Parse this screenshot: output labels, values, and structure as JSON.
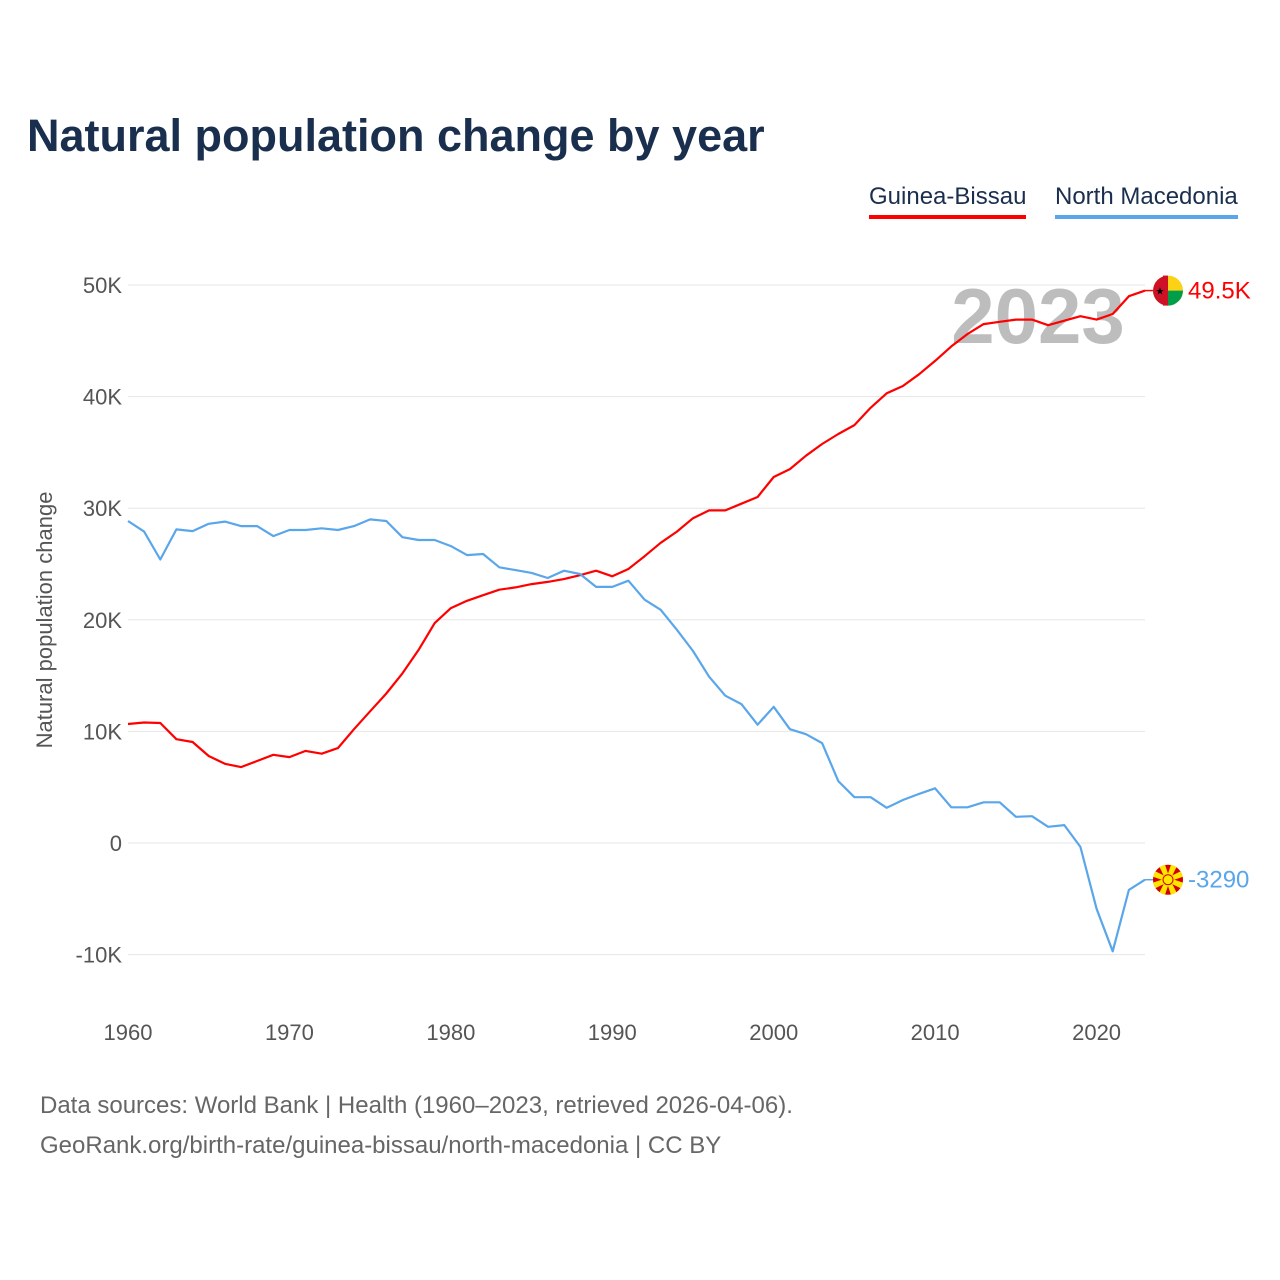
{
  "title": "Natural population change by year",
  "footer": {
    "line1": "Data sources: World Bank | Health (1960–2023, retrieved 2026-04-06).",
    "line2": "GeoRank.org/birth-rate/guinea-bissau/north-macedonia | CC BY"
  },
  "chart_data": {
    "type": "line",
    "title": "Natural population change by year",
    "xlabel": "",
    "ylabel": "Natural population change",
    "year_label": "2023",
    "xlim": [
      1960,
      2023
    ],
    "ylim": [
      -10000,
      50000
    ],
    "x_ticks": [
      "1960",
      "1970",
      "1980",
      "1990",
      "2000",
      "2010",
      "2020"
    ],
    "y_ticks": [
      {
        "v": -10000,
        "label": "-10K"
      },
      {
        "v": 0,
        "label": "0"
      },
      {
        "v": 10000,
        "label": "10K"
      },
      {
        "v": 20000,
        "label": "20K"
      },
      {
        "v": 30000,
        "label": "30K"
      },
      {
        "v": 40000,
        "label": "40K"
      },
      {
        "v": 50000,
        "label": "50K"
      }
    ],
    "grid": true,
    "legend_position": "top-right",
    "x": [
      1960,
      1961,
      1962,
      1963,
      1964,
      1965,
      1966,
      1967,
      1968,
      1969,
      1970,
      1971,
      1972,
      1973,
      1974,
      1975,
      1976,
      1977,
      1978,
      1979,
      1980,
      1981,
      1982,
      1983,
      1984,
      1985,
      1986,
      1987,
      1988,
      1989,
      1990,
      1991,
      1992,
      1993,
      1994,
      1995,
      1996,
      1997,
      1998,
      1999,
      2000,
      2001,
      2002,
      2003,
      2004,
      2005,
      2006,
      2007,
      2008,
      2009,
      2010,
      2011,
      2012,
      2013,
      2014,
      2015,
      2016,
      2017,
      2018,
      2019,
      2020,
      2021,
      2022,
      2023
    ],
    "series": [
      {
        "name": "Guinea-Bissau",
        "color": "#ff0000",
        "end_label": "49.5K",
        "flag": "guinea-bissau-flag",
        "values": [
          10660,
          10800,
          10750,
          9300,
          9050,
          7800,
          7100,
          6800,
          7350,
          7900,
          7700,
          8250,
          8000,
          8500,
          10200,
          11800,
          13400,
          15200,
          17300,
          19700,
          21050,
          21700,
          22200,
          22700,
          22900,
          23200,
          23400,
          23650,
          24000,
          24400,
          23900,
          24550,
          25700,
          26900,
          27900,
          29100,
          29800,
          29800,
          30400,
          31000,
          32800,
          33500,
          34700,
          35750,
          36650,
          37450,
          39000,
          40300,
          40950,
          42000,
          43200,
          44500,
          45600,
          46500,
          46700,
          46900,
          46900,
          46400,
          46800,
          47200,
          46900,
          47400,
          49000,
          49500
        ]
      },
      {
        "name": "North Macedonia",
        "color": "#5aa6eb",
        "end_label": "-3290",
        "flag": "north-macedonia-flag",
        "values": [
          28850,
          27900,
          25400,
          28100,
          27950,
          28600,
          28800,
          28400,
          28400,
          27500,
          28050,
          28050,
          28200,
          28050,
          28400,
          29000,
          28850,
          27400,
          27150,
          27150,
          26600,
          25800,
          25900,
          24700,
          24450,
          24200,
          23750,
          24400,
          24100,
          22950,
          22950,
          23500,
          21800,
          20900,
          19100,
          17200,
          14900,
          13200,
          12450,
          10600,
          12200,
          10200,
          9750,
          8950,
          5550,
          4100,
          4100,
          3150,
          3850,
          4400,
          4900,
          3200,
          3200,
          3650,
          3650,
          2350,
          2400,
          1450,
          1600,
          -350,
          -5900,
          -9700,
          -4200,
          -3290
        ]
      }
    ]
  }
}
